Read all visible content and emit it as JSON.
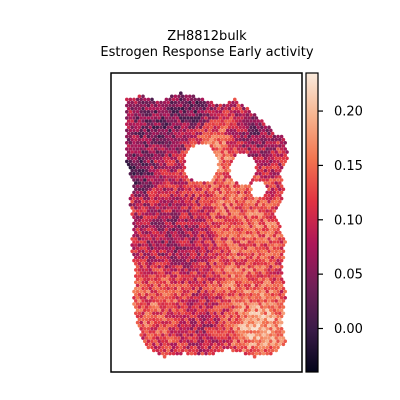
{
  "chart_data": {
    "type": "scatter",
    "subtype": "spatial-hexbin",
    "title": "ZH8812bulk",
    "subtitle": "Estrogen Response Early activity",
    "xlabel": "",
    "ylabel": "",
    "grid": false,
    "axis_ticks_visible": false,
    "colormap": "rocket",
    "colormap_stops": [
      "#03051a",
      "#3b1b48",
      "#701f57",
      "#ad1759",
      "#e13342",
      "#f37651",
      "#f6b48f",
      "#faebdd"
    ],
    "colorbar": {
      "position": "right",
      "range": [
        -0.04,
        0.235
      ],
      "ticks": [
        {
          "value": 0.0,
          "label": "0.00"
        },
        {
          "value": 0.05,
          "label": "0.05"
        },
        {
          "value": 0.1,
          "label": "0.10"
        },
        {
          "value": 0.15,
          "label": "0.15"
        },
        {
          "value": 0.2,
          "label": "0.20"
        }
      ]
    },
    "spatial_range": {
      "x": [
        0,
        100
      ],
      "y": [
        0,
        140
      ]
    },
    "tissue_outline": [
      [
        6,
        6
      ],
      [
        14,
        4
      ],
      [
        24,
        7
      ],
      [
        36,
        3
      ],
      [
        48,
        6
      ],
      [
        58,
        9
      ],
      [
        66,
        6
      ],
      [
        74,
        12
      ],
      [
        82,
        18
      ],
      [
        88,
        24
      ],
      [
        94,
        26
      ],
      [
        95,
        36
      ],
      [
        91,
        44
      ],
      [
        93,
        54
      ],
      [
        88,
        66
      ],
      [
        94,
        78
      ],
      [
        92,
        94
      ],
      [
        94,
        106
      ],
      [
        92,
        120
      ],
      [
        94,
        130
      ],
      [
        88,
        136
      ],
      [
        76,
        138
      ],
      [
        62,
        134
      ],
      [
        50,
        138
      ],
      [
        38,
        136
      ],
      [
        26,
        138
      ],
      [
        16,
        133
      ],
      [
        12,
        122
      ],
      [
        9,
        108
      ],
      [
        11,
        94
      ],
      [
        8,
        82
      ],
      [
        10,
        70
      ],
      [
        7,
        60
      ],
      [
        10,
        50
      ],
      [
        5,
        38
      ],
      [
        6,
        26
      ],
      [
        5,
        16
      ]
    ],
    "tissue_holes": [
      {
        "cx": 47,
        "cy": 39,
        "r": 9
      },
      {
        "cx": 70,
        "cy": 42,
        "r": 7
      },
      {
        "cx": 79,
        "cy": 52,
        "r": 4
      }
    ],
    "activity_regions": [
      {
        "cx": 24,
        "cy": 18,
        "r": 14,
        "value": 0.02
      },
      {
        "cx": 44,
        "cy": 9,
        "r": 8,
        "value": 0.01
      },
      {
        "cx": 74,
        "cy": 26,
        "r": 9,
        "value": 0.03
      },
      {
        "cx": 10,
        "cy": 44,
        "r": 8,
        "value": 0.0
      },
      {
        "cx": 58,
        "cy": 36,
        "r": 13,
        "value": 0.17
      },
      {
        "cx": 74,
        "cy": 70,
        "r": 16,
        "value": 0.16
      },
      {
        "cx": 62,
        "cy": 56,
        "r": 8,
        "value": 0.15
      },
      {
        "cx": 22,
        "cy": 112,
        "r": 16,
        "value": 0.15
      },
      {
        "cx": 72,
        "cy": 102,
        "r": 14,
        "value": 0.16
      },
      {
        "cx": 80,
        "cy": 122,
        "r": 12,
        "value": 0.22
      },
      {
        "cx": 30,
        "cy": 76,
        "r": 14,
        "value": 0.06
      },
      {
        "cx": 46,
        "cy": 118,
        "r": 10,
        "value": 0.08
      }
    ],
    "baseline_value": 0.1
  }
}
